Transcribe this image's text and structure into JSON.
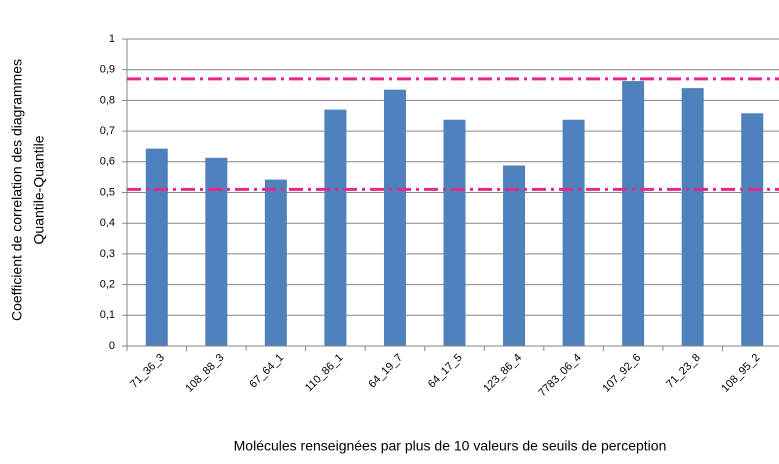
{
  "chart_data": {
    "type": "bar",
    "y_label": [
      "Coefficient de correlation des diagrammes",
      "Quantile-Quantile"
    ],
    "x_label": "Molécules renseignées par plus de 10 valeurs de seuils de perception",
    "categories": [
      "71_36_3",
      "108_88_3",
      "67_64_1",
      "110_86_1",
      "64_19_7",
      "64_17_5",
      "123_86_4",
      "7783_06_4",
      "107_92_6",
      "71_23_8",
      "108_95_2"
    ],
    "values": [
      0.643,
      0.613,
      0.542,
      0.77,
      0.835,
      0.737,
      0.588,
      0.737,
      0.863,
      0.84,
      0.758
    ],
    "color": "#4f81bd",
    "ylim": [
      0,
      1
    ],
    "yticks": [
      0,
      {
        "value": 0.1,
        "label": "0,1"
      },
      {
        "value": 0.2,
        "label": "0,2"
      },
      {
        "value": 0.3,
        "label": "0,3"
      },
      {
        "value": 0.4,
        "label": "0,4"
      },
      {
        "value": 0.5,
        "label": "0,5"
      },
      {
        "value": 0.6,
        "label": "0,6"
      },
      {
        "value": 0.7,
        "label": "0,7"
      },
      {
        "value": 0.8,
        "label": "0,8"
      },
      {
        "value": 0.9,
        "label": "0,9"
      },
      1
    ],
    "grid": true,
    "reference_lines": [
      {
        "value": 0.87,
        "color": "#e6288a"
      },
      {
        "value": 0.51,
        "color": "#e6288a"
      }
    ]
  }
}
